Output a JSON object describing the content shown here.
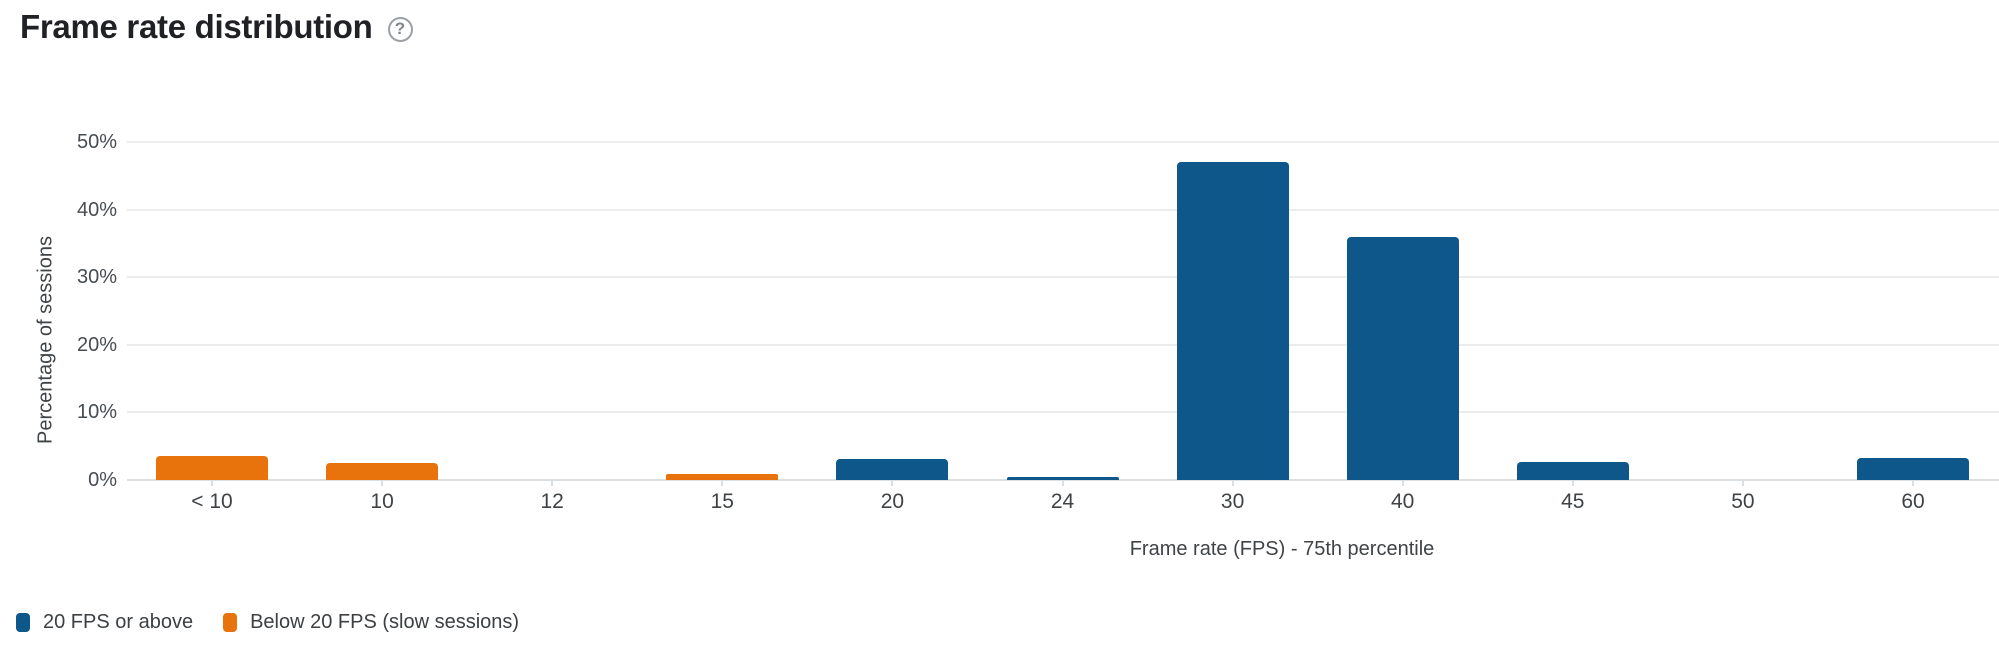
{
  "header": {
    "title": "Frame rate distribution",
    "help_glyph": "?"
  },
  "chart_data": {
    "type": "bar",
    "title": "Frame rate distribution",
    "xlabel": "Frame rate (FPS) - 75th percentile",
    "ylabel": "Percentage of sessions",
    "ylim": [
      0,
      50
    ],
    "grid": true,
    "legend_position": "bottom-left",
    "y_ticks": {
      "values": [
        0,
        10,
        20,
        30,
        40,
        50
      ],
      "labels": [
        "0%",
        "10%",
        "20%",
        "30%",
        "40%",
        "50%"
      ]
    },
    "categories": [
      "< 10",
      "10",
      "12",
      "15",
      "20",
      "24",
      "30",
      "40",
      "45",
      "50",
      "60"
    ],
    "series": [
      {
        "name": "20 FPS or above",
        "color": "#0d578a",
        "values": [
          0,
          0,
          0,
          0,
          3.1,
          0.5,
          47,
          36,
          2.7,
          0,
          3.3
        ]
      },
      {
        "name": "Below 20 FPS (slow sessions)",
        "color": "#e8720b",
        "values": [
          3.5,
          2.5,
          0,
          0.9,
          0,
          0,
          0,
          0,
          0,
          0,
          0
        ]
      }
    ]
  }
}
